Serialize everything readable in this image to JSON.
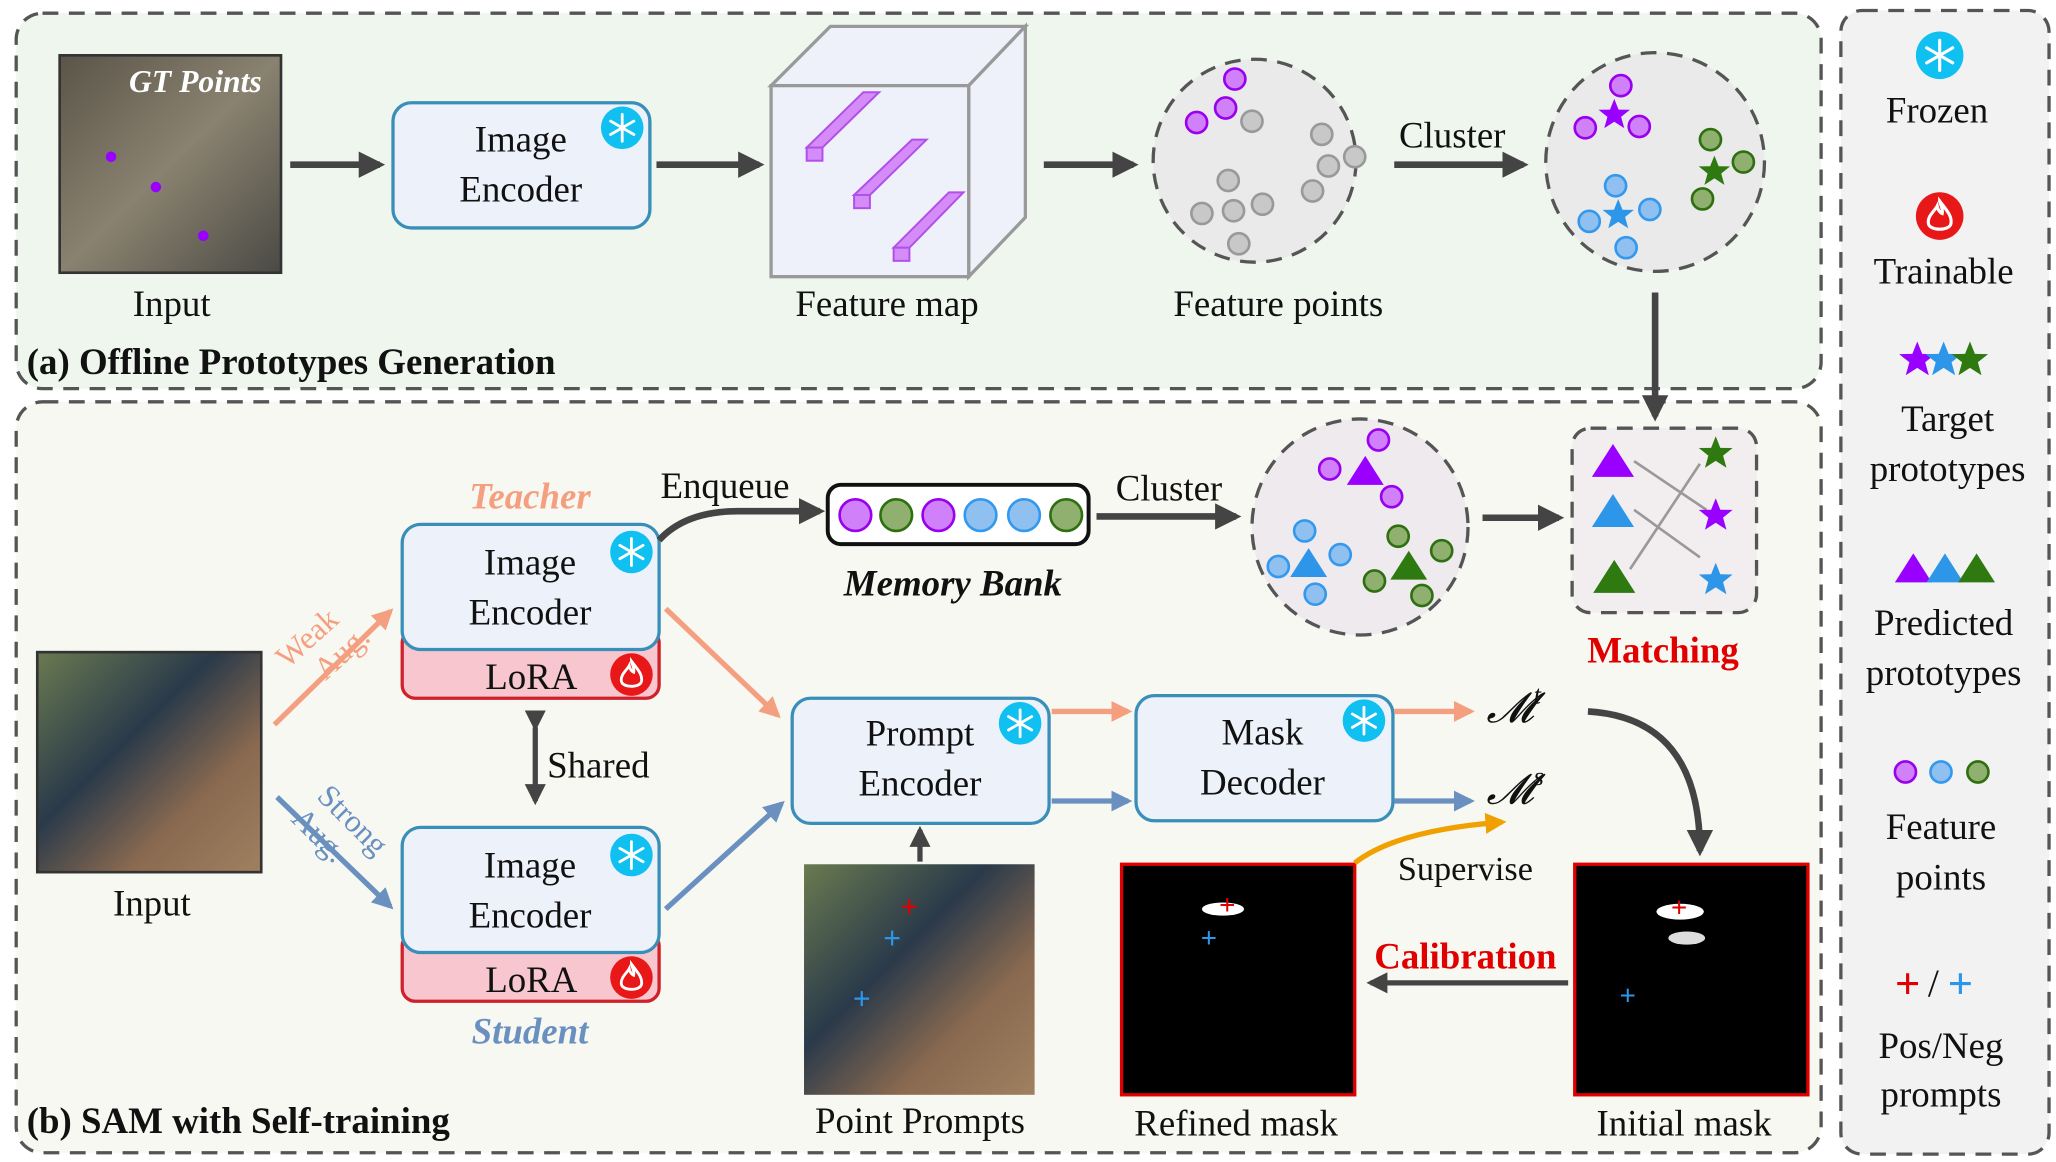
{
  "colors": {
    "purple": "#9900ff",
    "blue": "#2e96e8",
    "green": "#2e7a10",
    "teacher": "#f4a080",
    "student": "#6a90c0",
    "red": "#e00000"
  },
  "panel_a": {
    "title": "(a) Offline Prototypes Generation",
    "gt_points": "GT Points",
    "input": "Input",
    "encoder": [
      "Image",
      "Encoder"
    ],
    "feature_map": "Feature map",
    "feature_points": "Feature points",
    "cluster": "Cluster"
  },
  "panel_b": {
    "title": "(b) SAM with Self-training",
    "input": "Input",
    "weak": [
      "Weak",
      "Aug."
    ],
    "strong": [
      "Strong",
      "Aug."
    ],
    "teacher": "Teacher",
    "student": "Student",
    "encoder": [
      "Image",
      "Encoder"
    ],
    "lora": "LoRA",
    "shared": "Shared",
    "enqueue": "Enqueue",
    "memory_bank": "Memory Bank",
    "cluster": "Cluster",
    "matching": "Matching",
    "prompt_encoder": [
      "Prompt",
      "Encoder"
    ],
    "mask_decoder": [
      "Mask",
      "Decoder"
    ],
    "mt": "𝓜",
    "mt_sup": "t",
    "ms_sup": "s",
    "point_prompts": "Point Prompts",
    "supervise": "Supervise",
    "calibration": "Calibration",
    "refined_mask": "Refined mask",
    "initial_mask": "Initial mask"
  },
  "legend": {
    "frozen": "Frozen",
    "trainable": "Trainable",
    "target": [
      "Target",
      "prototypes"
    ],
    "predicted": [
      "Predicted",
      "prototypes"
    ],
    "feature": [
      "Feature",
      "points"
    ],
    "slash": "/",
    "prompts": [
      "Pos/Neg",
      "prompts"
    ]
  }
}
